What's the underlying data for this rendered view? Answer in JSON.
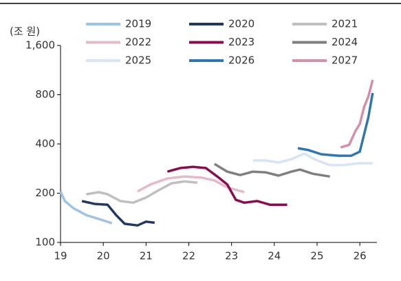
{
  "chart_data": {
    "type": "line",
    "y_unit_label": "(조 원)",
    "log_y": true,
    "xlim": [
      19,
      26.4
    ],
    "xticks": [
      19,
      20,
      21,
      22,
      23,
      24,
      25,
      26
    ],
    "ylim": [
      100,
      1600
    ],
    "yticks": [
      100,
      200,
      400,
      800,
      {
        "value": 1600,
        "label": "1,600"
      }
    ],
    "series": [
      {
        "name": "2019",
        "color": "#9dc3e6",
        "x": [
          19,
          19.1,
          19.3,
          19.6,
          19.9,
          20.2
        ],
        "values": [
          205,
          179,
          162,
          147,
          139,
          131
        ]
      },
      {
        "name": "2020",
        "color": "#1f3864",
        "x": [
          19.5,
          19.8,
          20.1,
          20.3,
          20.5,
          20.8,
          21.0,
          21.2
        ],
        "values": [
          179,
          172,
          170,
          147,
          130,
          127,
          134,
          132
        ]
      },
      {
        "name": "2021",
        "color": "#bfbfbf",
        "x": [
          19.6,
          19.9,
          20.1,
          20.4,
          20.7,
          21.0,
          21.3,
          21.6,
          21.9,
          22.2
        ],
        "values": [
          197,
          203,
          197,
          179,
          175,
          188,
          209,
          230,
          236,
          232
        ]
      },
      {
        "name": "2022",
        "color": "#e6b9c8",
        "x": [
          20.8,
          21.1,
          21.5,
          21.9,
          22.3,
          22.6,
          22.9,
          23.3
        ],
        "values": [
          205,
          226,
          246,
          253,
          249,
          239,
          217,
          203
        ]
      },
      {
        "name": "2023",
        "color": "#8b0a50",
        "x": [
          21.5,
          21.8,
          22.1,
          22.4,
          22.7,
          22.9,
          23.1,
          23.3,
          23.6,
          23.9,
          24.3
        ],
        "values": [
          271,
          285,
          290,
          285,
          249,
          226,
          182,
          175,
          179,
          170,
          170
        ]
      },
      {
        "name": "2024",
        "color": "#7f7f7f",
        "x": [
          22.6,
          22.9,
          23.2,
          23.5,
          23.8,
          24.1,
          24.4,
          24.6,
          24.9,
          25.3
        ],
        "values": [
          302,
          271,
          258,
          271,
          268,
          256,
          271,
          279,
          263,
          253
        ]
      },
      {
        "name": "2025",
        "color": "#d6e4f5",
        "x": [
          23.5,
          23.8,
          24.1,
          24.4,
          24.7,
          25.0,
          25.3,
          25.6,
          26.0,
          26.3
        ],
        "values": [
          317,
          317,
          308,
          323,
          349,
          317,
          297,
          297,
          305,
          305
        ]
      },
      {
        "name": "2026",
        "color": "#2e75b6",
        "x": [
          24.55,
          24.8,
          25.1,
          25.5,
          25.8,
          26.0,
          26.1,
          26.2,
          26.3
        ],
        "values": [
          377,
          367,
          346,
          339,
          339,
          359,
          458,
          583,
          819
        ]
      },
      {
        "name": "2027",
        "color": "#d48fa8",
        "x": [
          25.55,
          25.75,
          25.9,
          26.0,
          26.1,
          26.2,
          26.3
        ],
        "values": [
          381,
          395,
          481,
          530,
          674,
          780,
          985
        ]
      }
    ]
  }
}
